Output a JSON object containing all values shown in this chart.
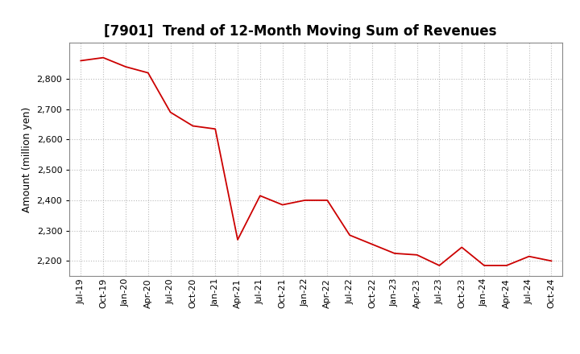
{
  "title": "[7901]  Trend of 12-Month Moving Sum of Revenues",
  "ylabel": "Amount (million yen)",
  "line_color": "#cc0000",
  "background_color": "#ffffff",
  "plot_bg_color": "#ffffff",
  "grid_color": "#bbbbbb",
  "title_fontsize": 12,
  "label_fontsize": 9,
  "tick_fontsize": 8,
  "ylim": [
    2150,
    2920
  ],
  "yticks": [
    2200,
    2300,
    2400,
    2500,
    2600,
    2700,
    2800
  ],
  "labels": [
    "Jul-19",
    "Oct-19",
    "Jan-20",
    "Apr-20",
    "Jul-20",
    "Oct-20",
    "Jan-21",
    "Apr-21",
    "Jul-21",
    "Oct-21",
    "Jan-22",
    "Apr-22",
    "Jul-22",
    "Oct-22",
    "Jan-23",
    "Apr-23",
    "Jul-23",
    "Oct-23",
    "Jan-24",
    "Apr-24",
    "Jul-24",
    "Oct-24"
  ],
  "values": [
    2860,
    2870,
    2840,
    2820,
    2690,
    2645,
    2635,
    2270,
    2415,
    2385,
    2400,
    2400,
    2285,
    2255,
    2225,
    2220,
    2185,
    2245,
    2185,
    2185,
    2215,
    2200
  ],
  "figsize": [
    7.2,
    4.4
  ],
  "dpi": 100
}
